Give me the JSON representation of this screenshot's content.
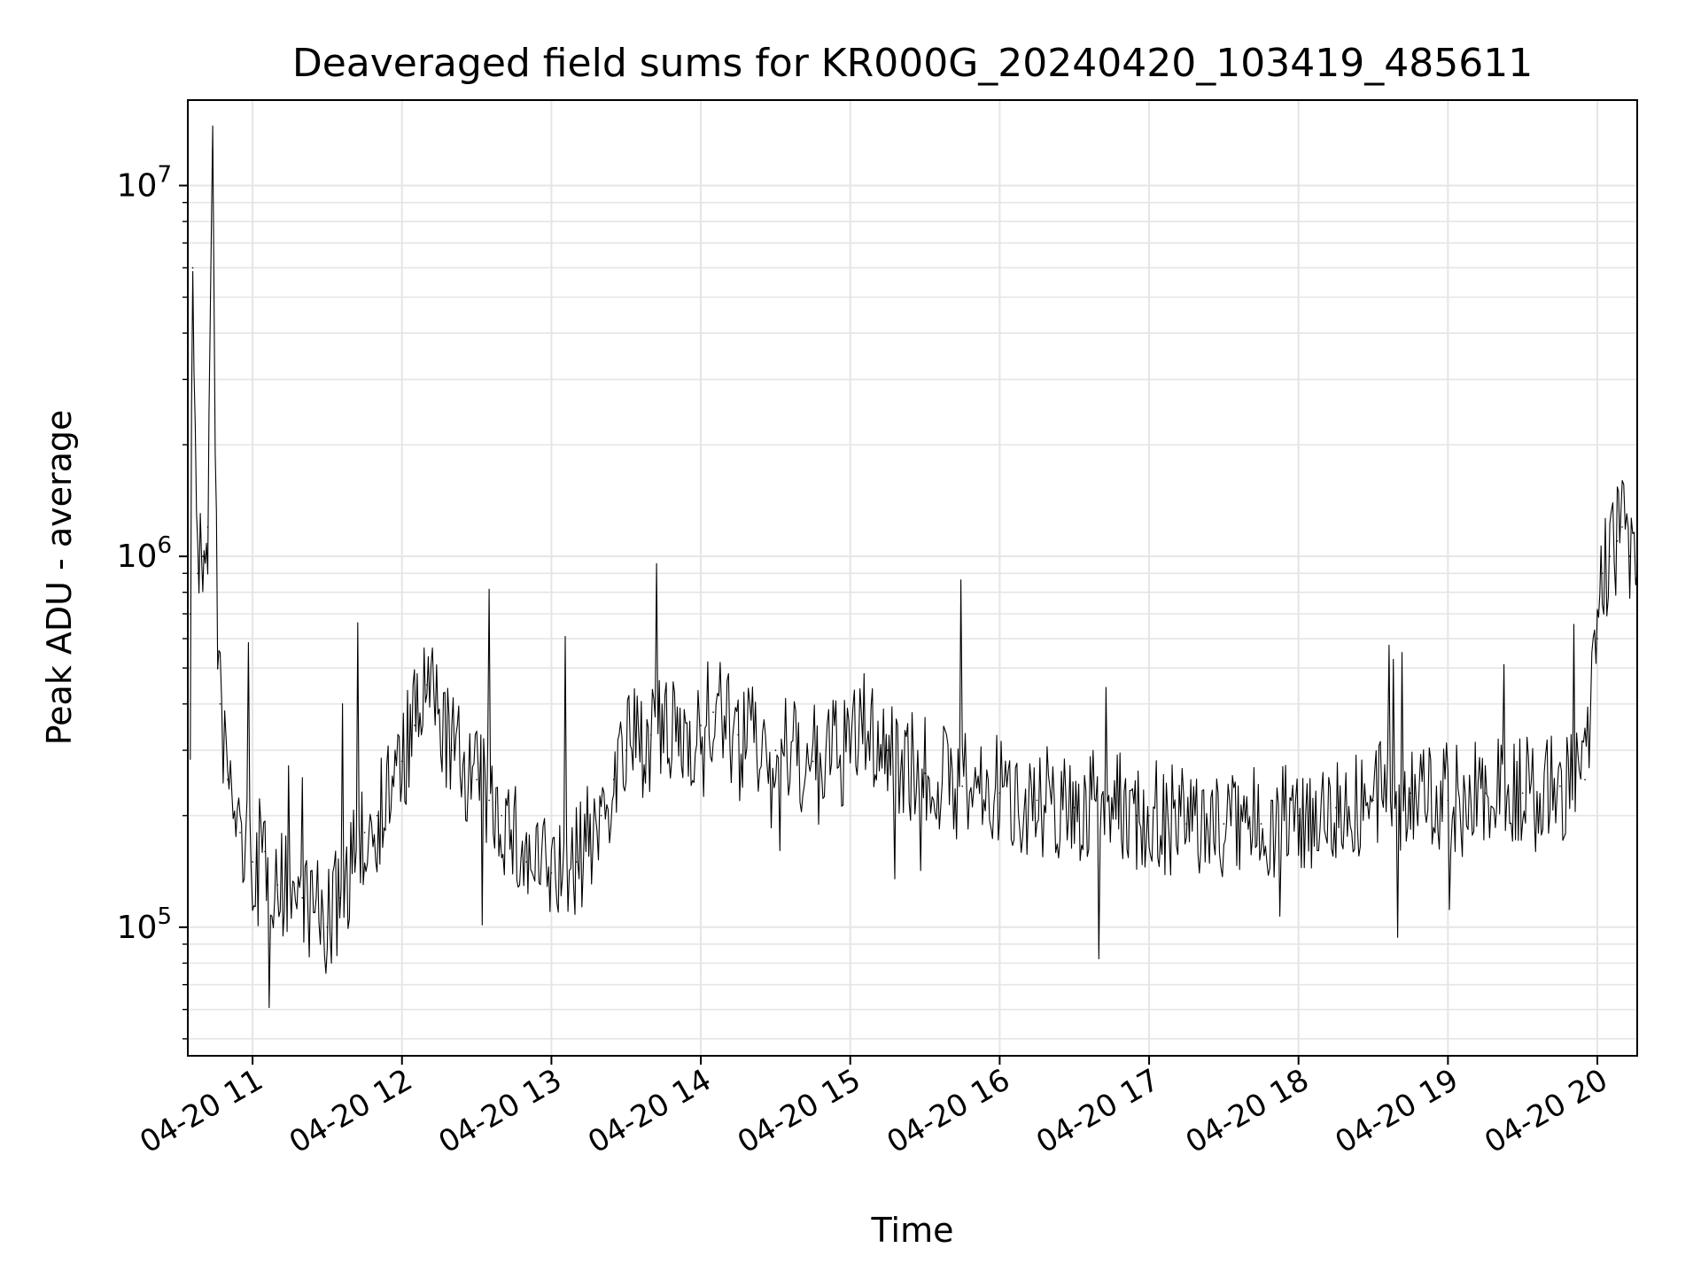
{
  "chart_data": {
    "type": "line",
    "title": "Deaveraged field sums for KR000G_20240420_103419_485611",
    "xlabel": "Time",
    "ylabel": "Peak ADU - average",
    "yscale": "log",
    "grid": true,
    "legend": "none",
    "line_color": "#000000",
    "grid_color": "#e5e5e5",
    "xlim": [
      "2024-04-20 10:34",
      "2024-04-20 20:16"
    ],
    "ylim": [
      45000,
      17000000
    ],
    "x_ticks": [
      {
        "t": "2024-04-20 11:00",
        "label": "04-20 11"
      },
      {
        "t": "2024-04-20 12:00",
        "label": "04-20 12"
      },
      {
        "t": "2024-04-20 13:00",
        "label": "04-20 13"
      },
      {
        "t": "2024-04-20 14:00",
        "label": "04-20 14"
      },
      {
        "t": "2024-04-20 15:00",
        "label": "04-20 15"
      },
      {
        "t": "2024-04-20 16:00",
        "label": "04-20 16"
      },
      {
        "t": "2024-04-20 17:00",
        "label": "04-20 17"
      },
      {
        "t": "2024-04-20 18:00",
        "label": "04-20 18"
      },
      {
        "t": "2024-04-20 19:00",
        "label": "04-20 19"
      },
      {
        "t": "2024-04-20 20:00",
        "label": "04-20 20"
      }
    ],
    "y_ticks": [
      {
        "value": 100000,
        "base": "10",
        "exp": "5"
      },
      {
        "value": 1000000,
        "base": "10",
        "exp": "6"
      },
      {
        "value": 10000000,
        "base": "10",
        "exp": "7"
      }
    ],
    "series": [
      {
        "x": [
          "2024-04-20 10:35",
          "2024-04-20 10:36",
          "2024-04-20 10:38",
          "2024-04-20 10:40",
          "2024-04-20 10:42",
          "2024-04-20 10:44",
          "2024-04-20 10:46",
          "2024-04-20 10:47",
          "2024-04-20 10:50",
          "2024-04-20 10:55",
          "2024-04-20 11:00",
          "2024-04-20 11:05",
          "2024-04-20 11:10",
          "2024-04-20 11:20",
          "2024-04-20 11:25",
          "2024-04-20 11:30",
          "2024-04-20 11:35",
          "2024-04-20 11:40",
          "2024-04-20 11:45",
          "2024-04-20 11:50",
          "2024-04-20 12:00",
          "2024-04-20 12:05",
          "2024-04-20 12:10",
          "2024-04-20 12:20",
          "2024-04-20 12:30",
          "2024-04-20 12:35",
          "2024-04-20 12:40",
          "2024-04-20 12:50",
          "2024-04-20 13:00",
          "2024-04-20 13:10",
          "2024-04-20 13:20",
          "2024-04-20 13:25",
          "2024-04-20 13:30",
          "2024-04-20 13:40",
          "2024-04-20 13:50",
          "2024-04-20 14:00",
          "2024-04-20 14:05",
          "2024-04-20 14:15",
          "2024-04-20 14:30",
          "2024-04-20 14:45",
          "2024-04-20 15:00",
          "2024-04-20 15:05",
          "2024-04-20 15:15",
          "2024-04-20 15:30",
          "2024-04-20 15:45",
          "2024-04-20 16:00",
          "2024-04-20 16:15",
          "2024-04-20 16:30",
          "2024-04-20 16:45",
          "2024-04-20 16:55",
          "2024-04-20 17:00",
          "2024-04-20 17:15",
          "2024-04-20 17:30",
          "2024-04-20 17:45",
          "2024-04-20 18:00",
          "2024-04-20 18:15",
          "2024-04-20 18:30",
          "2024-04-20 18:45",
          "2024-04-20 19:00",
          "2024-04-20 19:15",
          "2024-04-20 19:30",
          "2024-04-20 19:45",
          "2024-04-20 19:55",
          "2024-04-20 20:00",
          "2024-04-20 20:02",
          "2024-04-20 20:05",
          "2024-04-20 20:08",
          "2024-04-20 20:10",
          "2024-04-20 20:13",
          "2024-04-20 20:16"
        ],
        "y": [
          700000,
          6000000,
          900000,
          1000000,
          1200000,
          12500000,
          500000,
          400000,
          250000,
          180000,
          150000,
          160000,
          130000,
          120000,
          110000,
          100000,
          120000,
          150000,
          180000,
          200000,
          280000,
          350000,
          450000,
          300000,
          250000,
          220000,
          200000,
          150000,
          140000,
          150000,
          200000,
          250000,
          300000,
          330000,
          320000,
          350000,
          380000,
          330000,
          300000,
          280000,
          300000,
          350000,
          300000,
          260000,
          240000,
          230000,
          220000,
          210000,
          210000,
          200000,
          200000,
          190000,
          190000,
          190000,
          200000,
          210000,
          220000,
          230000,
          220000,
          230000,
          230000,
          240000,
          250000,
          600000,
          900000,
          1000000,
          1100000,
          1200000,
          1000000,
          900000
        ]
      }
    ]
  }
}
